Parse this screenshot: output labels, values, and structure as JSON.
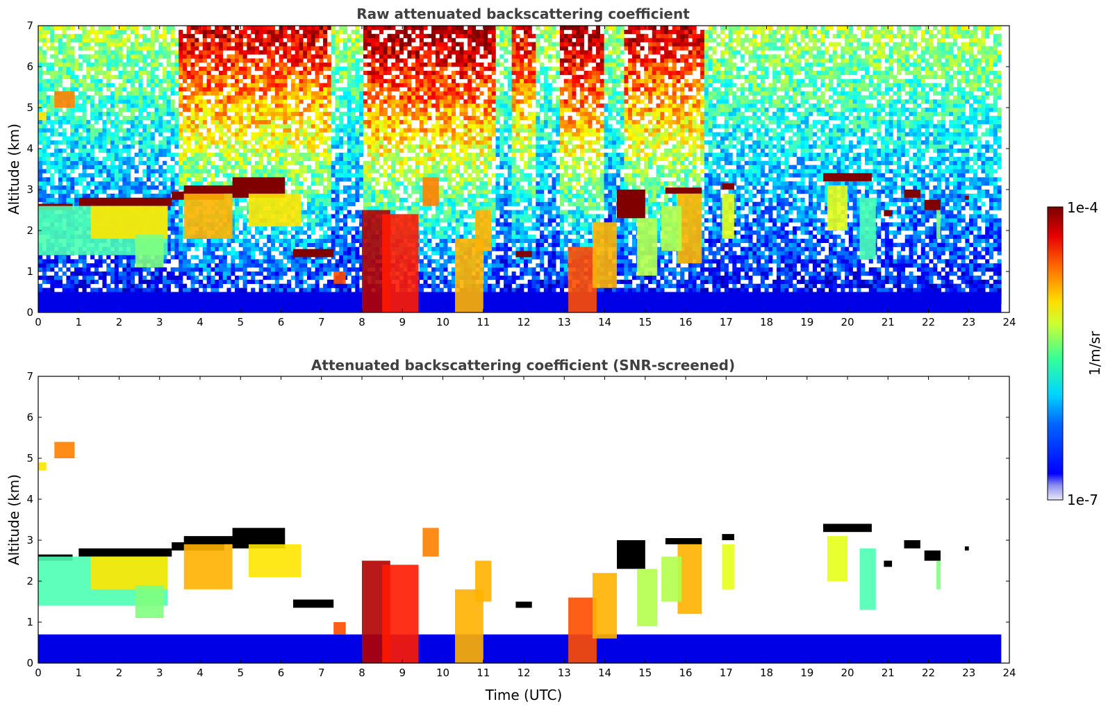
{
  "chart_data": [
    {
      "type": "heatmap",
      "title": "Raw attenuated backscattering coefficient",
      "xlabel": "",
      "ylabel": "Altitude (km)",
      "xlim": [
        0,
        24
      ],
      "ylim": [
        0,
        7
      ],
      "xticks": [
        "0",
        "1",
        "2",
        "3",
        "4",
        "5",
        "6",
        "7",
        "8",
        "9",
        "10",
        "11",
        "12",
        "13",
        "14",
        "15",
        "16",
        "17",
        "18",
        "19",
        "20",
        "21",
        "22",
        "23",
        "24"
      ],
      "yticks": [
        "0",
        "1",
        "2",
        "3",
        "4",
        "5",
        "6",
        "7"
      ],
      "data_end_time": 23.8,
      "surface_layer": {
        "top_km": 0.5,
        "level": 0.1
      },
      "background_noise": "strong",
      "noise_bands": [
        {
          "t0": 3.5,
          "t1": 7.2,
          "strength": 0.85
        },
        {
          "t0": 8.0,
          "t1": 11.3,
          "strength": 1.0
        },
        {
          "t0": 11.7,
          "t1": 12.3,
          "strength": 0.8
        },
        {
          "t0": 12.9,
          "t1": 14.0,
          "strength": 1.0
        },
        {
          "t0": 14.5,
          "t1": 16.5,
          "strength": 0.85
        }
      ],
      "features": [
        {
          "t0": 0.0,
          "t1": 0.85,
          "h0": 2.5,
          "h1": 2.65,
          "level": 1.0
        },
        {
          "t0": 1.0,
          "t1": 3.3,
          "h0": 2.6,
          "h1": 2.8,
          "level": 1.0
        },
        {
          "t0": 3.3,
          "t1": 4.6,
          "h0": 2.75,
          "h1": 2.95,
          "level": 1.0
        },
        {
          "t0": 3.6,
          "t1": 5.0,
          "h0": 2.9,
          "h1": 3.1,
          "level": 1.0
        },
        {
          "t0": 4.8,
          "t1": 6.1,
          "h0": 2.8,
          "h1": 3.3,
          "level": 1.0
        },
        {
          "t0": 0.0,
          "t1": 3.2,
          "h0": 1.4,
          "h1": 2.6,
          "level": 0.45
        },
        {
          "t0": 1.3,
          "t1": 3.2,
          "h0": 1.8,
          "h1": 2.6,
          "level": 0.65
        },
        {
          "t0": 3.6,
          "t1": 4.8,
          "h0": 1.8,
          "h1": 2.9,
          "level": 0.7
        },
        {
          "t0": 5.2,
          "t1": 6.5,
          "h0": 2.1,
          "h1": 2.9,
          "level": 0.65
        },
        {
          "t0": 2.4,
          "t1": 3.1,
          "h0": 1.1,
          "h1": 1.9,
          "level": 0.5
        },
        {
          "t0": 0.4,
          "t1": 0.9,
          "h0": 5.0,
          "h1": 5.4,
          "level": 0.75
        },
        {
          "t0": 0.0,
          "t1": 0.2,
          "h0": 4.7,
          "h1": 4.9,
          "level": 0.65
        },
        {
          "t0": 6.3,
          "t1": 7.3,
          "h0": 1.35,
          "h1": 1.55,
          "level": 1.0
        },
        {
          "t0": 7.3,
          "t1": 7.6,
          "h0": 0.7,
          "h1": 1.0,
          "level": 0.8
        },
        {
          "t0": 8.0,
          "t1": 8.7,
          "h0": 0.0,
          "h1": 2.5,
          "level": 0.95
        },
        {
          "t0": 8.5,
          "t1": 9.4,
          "h0": 0.0,
          "h1": 2.4,
          "level": 0.85
        },
        {
          "t0": 9.5,
          "t1": 9.9,
          "h0": 2.6,
          "h1": 3.3,
          "level": 0.75
        },
        {
          "t0": 10.3,
          "t1": 11.0,
          "h0": 0.0,
          "h1": 1.8,
          "level": 0.7
        },
        {
          "t0": 10.8,
          "t1": 11.2,
          "h0": 1.5,
          "h1": 2.5,
          "level": 0.7
        },
        {
          "t0": 11.8,
          "t1": 12.2,
          "h0": 1.35,
          "h1": 1.5,
          "level": 1.0
        },
        {
          "t0": 13.1,
          "t1": 13.8,
          "h0": 0.0,
          "h1": 1.6,
          "level": 0.8
        },
        {
          "t0": 13.7,
          "t1": 14.3,
          "h0": 0.6,
          "h1": 2.2,
          "level": 0.7
        },
        {
          "t0": 14.3,
          "t1": 15.0,
          "h0": 2.3,
          "h1": 3.0,
          "level": 1.0
        },
        {
          "t0": 14.8,
          "t1": 15.3,
          "h0": 0.9,
          "h1": 2.3,
          "level": 0.55
        },
        {
          "t0": 15.5,
          "t1": 16.4,
          "h0": 2.9,
          "h1": 3.05,
          "level": 1.0
        },
        {
          "t0": 15.8,
          "t1": 16.4,
          "h0": 1.2,
          "h1": 2.9,
          "level": 0.7
        },
        {
          "t0": 15.4,
          "t1": 15.9,
          "h0": 1.5,
          "h1": 2.6,
          "level": 0.55
        },
        {
          "t0": 16.9,
          "t1": 17.2,
          "h0": 3.0,
          "h1": 3.15,
          "level": 1.0
        },
        {
          "t0": 16.9,
          "t1": 17.2,
          "h0": 1.8,
          "h1": 2.9,
          "level": 0.6
        },
        {
          "t0": 19.4,
          "t1": 20.6,
          "h0": 3.2,
          "h1": 3.4,
          "level": 1.0
        },
        {
          "t0": 19.5,
          "t1": 20.0,
          "h0": 2.0,
          "h1": 3.1,
          "level": 0.6
        },
        {
          "t0": 20.3,
          "t1": 20.7,
          "h0": 1.3,
          "h1": 2.8,
          "level": 0.45
        },
        {
          "t0": 20.9,
          "t1": 21.1,
          "h0": 2.35,
          "h1": 2.5,
          "level": 1.0
        },
        {
          "t0": 21.4,
          "t1": 21.8,
          "h0": 2.8,
          "h1": 3.0,
          "level": 1.0
        },
        {
          "t0": 21.9,
          "t1": 22.3,
          "h0": 2.5,
          "h1": 2.75,
          "level": 1.0
        },
        {
          "t0": 22.2,
          "t1": 22.3,
          "h0": 1.8,
          "h1": 2.5,
          "level": 0.5
        },
        {
          "t0": 22.9,
          "t1": 23.0,
          "h0": 2.75,
          "h1": 2.85,
          "level": 1.0
        }
      ]
    },
    {
      "type": "heatmap",
      "title": "Attenuated backscattering coefficient (SNR-screened)",
      "xlabel": "Time (UTC)",
      "ylabel": "Altitude (km)",
      "xlim": [
        0,
        24
      ],
      "ylim": [
        0,
        7
      ],
      "xticks": [
        "0",
        "1",
        "2",
        "3",
        "4",
        "5",
        "6",
        "7",
        "8",
        "9",
        "10",
        "11",
        "12",
        "13",
        "14",
        "15",
        "16",
        "17",
        "18",
        "19",
        "20",
        "21",
        "22",
        "23",
        "24"
      ],
      "yticks": [
        "0",
        "1",
        "2",
        "3",
        "4",
        "5",
        "6",
        "7"
      ],
      "data_end_time": 23.8,
      "surface_layer": {
        "top_km": 0.7,
        "level": 0.1
      },
      "background_noise": "none",
      "saturated_color": "#000000",
      "noise_bands": [],
      "features": "same_as_raw"
    }
  ],
  "colorbar": {
    "max_label": "1e-4",
    "min_label": "1e-7",
    "unit_label": "1/m/sr",
    "scale": "log"
  }
}
